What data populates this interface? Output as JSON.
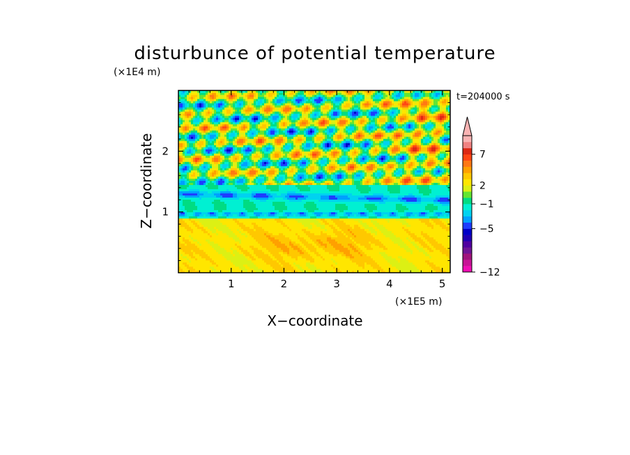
{
  "chart_data": {
    "type": "heatmap",
    "title": "disturbunce of potential temperature",
    "xlabel": "X−coordinate",
    "ylabel": "Z−coordinate",
    "x_unit": "(×1E5 m)",
    "y_unit": "(×1E4 m)",
    "time_label": "t=204000 s",
    "xlim": [
      0,
      5.15
    ],
    "ylim": [
      0,
      3.0
    ],
    "x_ticks": [
      1,
      2,
      3,
      4,
      5
    ],
    "y_ticks": [
      1,
      2
    ],
    "colorbar": {
      "levels": [
        -12,
        -11,
        -10,
        -9,
        -8,
        -7,
        -6,
        -5,
        -4,
        -3,
        -2,
        -1,
        0,
        1,
        2,
        3,
        4,
        5,
        6,
        7,
        8,
        9,
        10
      ],
      "colors": [
        "#f00fb4",
        "#c81496",
        "#a0147d",
        "#6e1496",
        "#5000a0",
        "#1e00b4",
        "#0000c8",
        "#1e3cff",
        "#00a0ff",
        "#00d2f0",
        "#00f0d2",
        "#00dc82",
        "#64e632",
        "#dcf014",
        "#ffe600",
        "#ffc800",
        "#ffa000",
        "#ff7814",
        "#ff4614",
        "#dc2814",
        "#f08282",
        "#fab4b4"
      ],
      "labeled_levels": [
        7,
        2,
        -1,
        -5,
        -12
      ],
      "extend": "max"
    }
  }
}
